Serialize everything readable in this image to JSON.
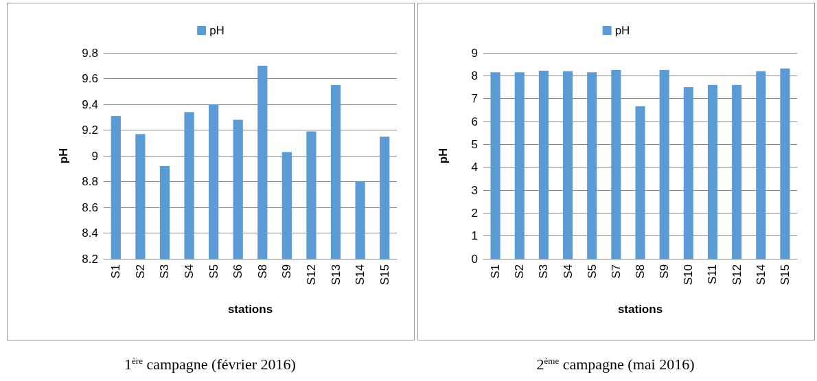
{
  "chart_data": [
    {
      "type": "bar",
      "categories": [
        "S1",
        "S2",
        "S3",
        "S4",
        "S5",
        "S6",
        "S8",
        "S9",
        "S12",
        "S13",
        "S14",
        "S15"
      ],
      "series": [
        {
          "name": "pH",
          "color": "#5b9bd5",
          "values": [
            9.31,
            9.17,
            8.92,
            9.34,
            9.4,
            9.28,
            9.7,
            9.03,
            9.19,
            9.55,
            8.8,
            9.15
          ]
        }
      ],
      "xlabel": "stations",
      "ylabel": "pH",
      "ylim": [
        8.2,
        9.8
      ],
      "yticks": [
        8.2,
        8.4,
        8.6,
        8.8,
        9,
        9.2,
        9.4,
        9.6,
        9.8
      ],
      "grid": "y",
      "legend": "top",
      "annotations": [
        "1$^{ère}$ campagne (février 2016)"
      ]
    },
    {
      "type": "bar",
      "categories": [
        "S1",
        "S2",
        "S3",
        "S4",
        "S5",
        "S7",
        "S8",
        "S9",
        "S10",
        "S11",
        "S12",
        "S14",
        "S15"
      ],
      "series": [
        {
          "name": "pH",
          "color": "#5b9bd5",
          "values": [
            8.15,
            8.15,
            8.22,
            8.2,
            8.15,
            8.25,
            6.67,
            8.25,
            7.5,
            7.6,
            7.6,
            8.2,
            8.32
          ]
        }
      ],
      "xlabel": "stations",
      "ylabel": "pH",
      "ylim": [
        0,
        9
      ],
      "yticks": [
        0,
        1,
        2,
        3,
        4,
        5,
        6,
        7,
        8,
        9
      ],
      "grid": "y",
      "legend": "top",
      "annotations": [
        "2$^{ème}$ campagne (mai 2016)"
      ]
    }
  ]
}
